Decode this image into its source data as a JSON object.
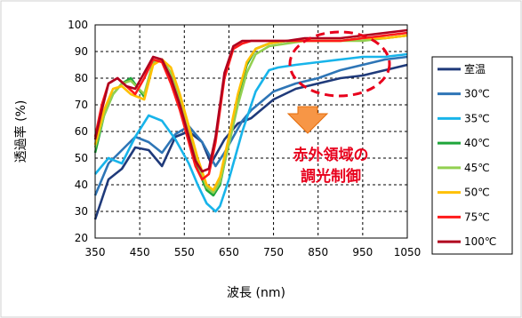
{
  "chart_data": {
    "type": "line",
    "title": "",
    "xlabel": "波長 (nm)",
    "ylabel": "透過率 (%)",
    "xlim": [
      350,
      1050
    ],
    "ylim": [
      20,
      100
    ],
    "xticks": [
      "350",
      "450",
      "550",
      "650",
      "750",
      "850",
      "950",
      "1050"
    ],
    "yticks": [
      "20",
      "30",
      "40",
      "50",
      "60",
      "70",
      "80",
      "90",
      "100"
    ],
    "grid": true,
    "legend_position": "right",
    "annotation": [
      "赤外領域の",
      "調光制御"
    ],
    "series": [
      {
        "name": "室温",
        "color": "#1f3a7a",
        "x": [
          350,
          380,
          410,
          440,
          470,
          500,
          530,
          560,
          590,
          610,
          640,
          670,
          700,
          750,
          800,
          850,
          900,
          950,
          1000,
          1050
        ],
        "y": [
          27,
          42,
          46,
          54,
          53,
          47,
          58,
          60,
          56,
          48,
          57,
          63,
          65,
          72,
          76,
          78,
          80,
          81,
          83,
          85
        ]
      },
      {
        "name": "30℃",
        "color": "#2e75b6",
        "x": [
          350,
          380,
          410,
          440,
          470,
          500,
          530,
          560,
          590,
          620,
          640,
          660,
          680,
          700,
          750,
          800,
          850,
          900,
          950,
          1000,
          1050
        ],
        "y": [
          36,
          48,
          53,
          58,
          56,
          52,
          59,
          62,
          56,
          47,
          52,
          58,
          64,
          68,
          75,
          78,
          80,
          83,
          85,
          87,
          88
        ]
      },
      {
        "name": "35℃",
        "color": "#18b4ea",
        "x": [
          350,
          380,
          410,
          440,
          470,
          500,
          530,
          560,
          580,
          600,
          620,
          630,
          650,
          680,
          710,
          740,
          760,
          800,
          850,
          900,
          950,
          1000,
          1050
        ],
        "y": [
          44,
          50,
          48,
          58,
          66,
          64,
          57,
          48,
          40,
          33,
          30,
          32,
          42,
          60,
          75,
          83,
          84,
          85,
          86,
          87,
          88,
          88,
          89
        ]
      },
      {
        "name": "40℃",
        "color": "#1ea53a",
        "x": [
          350,
          370,
          390,
          410,
          430,
          460,
          480,
          500,
          520,
          540,
          560,
          580,
          600,
          615,
          630,
          650,
          670,
          690,
          710,
          740,
          780,
          820,
          860,
          900,
          950,
          1000,
          1050
        ],
        "y": [
          52,
          66,
          74,
          78,
          80,
          73,
          86,
          87,
          80,
          70,
          58,
          46,
          38,
          36,
          40,
          56,
          73,
          85,
          91,
          93,
          94,
          94,
          94,
          94,
          95,
          95,
          96
        ]
      },
      {
        "name": "45℃",
        "color": "#92d050",
        "x": [
          350,
          370,
          390,
          410,
          430,
          460,
          480,
          500,
          520,
          540,
          560,
          580,
          600,
          615,
          630,
          650,
          670,
          690,
          710,
          740,
          780,
          820,
          860,
          900,
          950,
          1000,
          1050
        ],
        "y": [
          54,
          66,
          74,
          78,
          79,
          74,
          86,
          87,
          82,
          72,
          60,
          48,
          39,
          37,
          41,
          55,
          70,
          82,
          89,
          92,
          93,
          94,
          94,
          94,
          94,
          95,
          96
        ]
      },
      {
        "name": "50℃",
        "color": "#ffc000",
        "x": [
          350,
          370,
          390,
          410,
          430,
          460,
          480,
          500,
          520,
          540,
          560,
          580,
          600,
          615,
          630,
          650,
          670,
          690,
          710,
          740,
          780,
          820,
          860,
          900,
          950,
          1000,
          1050
        ],
        "y": [
          55,
          68,
          76,
          77,
          74,
          72,
          85,
          87,
          84,
          74,
          62,
          50,
          40,
          38,
          43,
          58,
          74,
          86,
          91,
          93,
          94,
          94,
          94,
          94,
          95,
          95,
          96
        ]
      },
      {
        "name": "75℃",
        "color": "#ff1a1a",
        "x": [
          350,
          365,
          380,
          400,
          420,
          440,
          460,
          480,
          500,
          520,
          540,
          560,
          575,
          590,
          605,
          620,
          640,
          660,
          680,
          700,
          740,
          780,
          820,
          860,
          900,
          950,
          1000,
          1050
        ],
        "y": [
          58,
          70,
          78,
          80,
          77,
          74,
          80,
          87,
          86,
          78,
          68,
          56,
          47,
          42,
          44,
          56,
          80,
          91,
          93,
          94,
          94,
          94,
          94,
          94,
          94,
          95,
          96,
          97
        ]
      },
      {
        "name": "100℃",
        "color": "#b0001e",
        "x": [
          350,
          365,
          380,
          400,
          420,
          440,
          460,
          480,
          500,
          520,
          540,
          560,
          575,
          590,
          605,
          620,
          640,
          660,
          680,
          700,
          740,
          780,
          820,
          860,
          900,
          950,
          1000,
          1050
        ],
        "y": [
          57,
          68,
          78,
          80,
          77,
          76,
          82,
          88,
          87,
          80,
          70,
          58,
          49,
          45,
          46,
          58,
          82,
          92,
          94,
          94,
          94,
          94,
          95,
          95,
          95,
          96,
          97,
          98
        ]
      }
    ]
  }
}
